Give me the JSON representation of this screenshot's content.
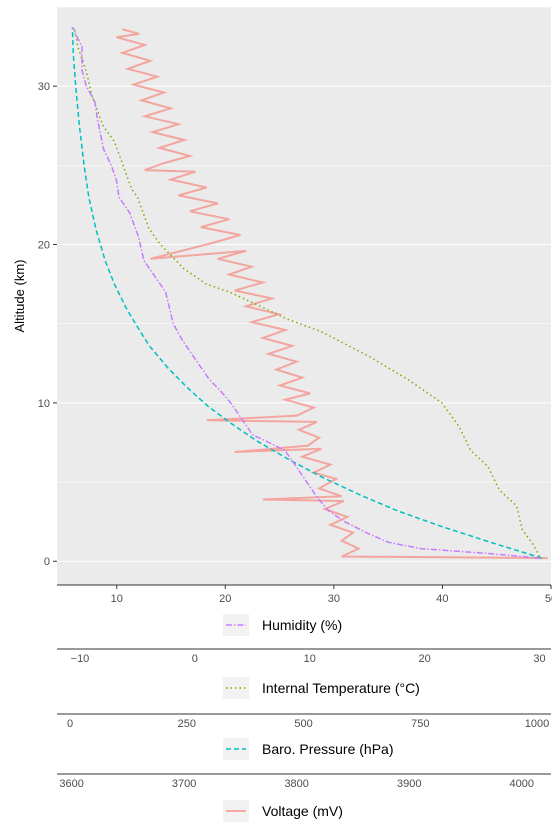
{
  "chart_data": {
    "type": "line",
    "title": "",
    "ylabel": "Altitude (km)",
    "ylim": [
      -1.5,
      35
    ],
    "y_ticks": [
      0,
      10,
      20,
      30
    ],
    "grid": true,
    "legend_position": "bottom",
    "axes": [
      {
        "key": "humidity",
        "label": "Humidity (%)",
        "unit": "%",
        "range": [
          4.5,
          50
        ],
        "ticks": [
          10,
          20,
          30,
          40,
          50
        ]
      },
      {
        "key": "temperature",
        "label": "Internal Temperature (°C)",
        "unit": "°C",
        "range": [
          -12,
          31
        ],
        "ticks": [
          -10,
          0,
          10,
          20,
          30
        ],
        "tick_labels": [
          "−10",
          "0",
          "10",
          "20",
          "30"
        ]
      },
      {
        "key": "pressure",
        "label": "Baro. Pressure (hPa)",
        "unit": "hPa",
        "range": [
          -28,
          1030
        ],
        "ticks": [
          0,
          250,
          500,
          750,
          1000
        ]
      },
      {
        "key": "voltage",
        "label": "Voltage (mV)",
        "unit": "mV",
        "range": [
          3587,
          4026
        ],
        "ticks": [
          3600,
          3700,
          3800,
          3900,
          4000
        ]
      }
    ],
    "series": [
      {
        "name": "Humidity (%)",
        "axis": "humidity",
        "color": "#c77cff",
        "dash": "6,2,1.5,2",
        "points": [
          [
            49,
            0.2
          ],
          [
            44,
            0.5
          ],
          [
            38,
            0.8
          ],
          [
            35,
            1.2
          ],
          [
            33,
            1.8
          ],
          [
            31,
            2.5
          ],
          [
            29.5,
            3.2
          ],
          [
            28.5,
            4
          ],
          [
            27.5,
            5
          ],
          [
            26.5,
            6
          ],
          [
            25.5,
            7
          ],
          [
            24,
            7.5
          ],
          [
            22.5,
            8
          ],
          [
            21.5,
            9
          ],
          [
            20.5,
            10
          ],
          [
            19.5,
            10.8
          ],
          [
            18.5,
            11.5
          ],
          [
            17.5,
            12.5
          ],
          [
            16,
            14
          ],
          [
            15.2,
            15
          ],
          [
            14.5,
            17
          ],
          [
            13.5,
            18
          ],
          [
            12.5,
            19
          ],
          [
            12,
            20.5
          ],
          [
            11.2,
            22
          ],
          [
            10.2,
            23
          ],
          [
            10,
            24
          ],
          [
            9.5,
            25
          ],
          [
            8.8,
            26
          ],
          [
            8.5,
            27
          ],
          [
            8.2,
            28
          ],
          [
            8,
            29
          ],
          [
            7.2,
            30
          ],
          [
            6.8,
            31
          ],
          [
            6.8,
            32.5
          ],
          [
            6.2,
            33.3
          ],
          [
            6,
            33.7
          ]
        ]
      },
      {
        "name": "Internal Temperature (°C)",
        "axis": "temperature",
        "color": "#7cae00",
        "dash": "1.5,3",
        "points": [
          [
            30,
            0.3
          ],
          [
            29.5,
            1
          ],
          [
            28.5,
            2
          ],
          [
            28,
            3.5
          ],
          [
            26.5,
            4.5
          ],
          [
            25.5,
            6
          ],
          [
            24,
            7
          ],
          [
            23,
            8.5
          ],
          [
            21.5,
            10
          ],
          [
            18.5,
            11.5
          ],
          [
            15,
            13
          ],
          [
            11,
            14.5
          ],
          [
            8,
            15.3
          ],
          [
            6,
            16
          ],
          [
            3,
            17
          ],
          [
            1,
            17.5
          ],
          [
            -1,
            18.5
          ],
          [
            -3,
            20
          ],
          [
            -4,
            21
          ],
          [
            -4.5,
            22
          ],
          [
            -5,
            23
          ],
          [
            -5.5,
            23.5
          ],
          [
            -6,
            24.5
          ],
          [
            -6.5,
            25.5
          ],
          [
            -7,
            26.5
          ],
          [
            -8,
            27.5
          ],
          [
            -8.5,
            28.5
          ],
          [
            -9,
            29.5
          ],
          [
            -9.3,
            30.5
          ],
          [
            -9.7,
            31.5
          ],
          [
            -10.2,
            32.5
          ],
          [
            -10.3,
            33
          ],
          [
            -10.5,
            33.7
          ]
        ]
      },
      {
        "name": "Baro. Pressure (hPa)",
        "axis": "pressure",
        "color": "#00bfc4",
        "dash": "5,3",
        "points": [
          [
            1010,
            0.2
          ],
          [
            900,
            1.2
          ],
          [
            795,
            2.2
          ],
          [
            700,
            3.2
          ],
          [
            620,
            4.2
          ],
          [
            540,
            5.3
          ],
          [
            470,
            6.4
          ],
          [
            400,
            7.6
          ],
          [
            345,
            8.7
          ],
          [
            295,
            9.8
          ],
          [
            250,
            11
          ],
          [
            210,
            12.2
          ],
          [
            170,
            13.6
          ],
          [
            140,
            15
          ],
          [
            120,
            16
          ],
          [
            95,
            17.5
          ],
          [
            75,
            19
          ],
          [
            55,
            21
          ],
          [
            40,
            23
          ],
          [
            30,
            25
          ],
          [
            20,
            27.5
          ],
          [
            12,
            30
          ],
          [
            7,
            32
          ],
          [
            5,
            33.7
          ]
        ]
      },
      {
        "name": "Voltage (mV)",
        "axis": "voltage",
        "color": "#f8766d",
        "dash": "",
        "opacity": 0.6,
        "points": [
          [
            4023,
            0.2
          ],
          [
            3840,
            0.3
          ],
          [
            3855,
            0.8
          ],
          [
            3840,
            1.3
          ],
          [
            3850,
            1.8
          ],
          [
            3830,
            2.3
          ],
          [
            3845,
            2.8
          ],
          [
            3825,
            3.3
          ],
          [
            3842,
            3.8
          ],
          [
            3770,
            3.9
          ],
          [
            3840,
            4.1
          ],
          [
            3820,
            4.6
          ],
          [
            3835,
            5.2
          ],
          [
            3815,
            5.6
          ],
          [
            3830,
            6.1
          ],
          [
            3805,
            6.6
          ],
          [
            3822,
            7.1
          ],
          [
            3745,
            6.9
          ],
          [
            3810,
            7.3
          ],
          [
            3820,
            7.8
          ],
          [
            3802,
            8.3
          ],
          [
            3818,
            8.8
          ],
          [
            3720,
            8.9
          ],
          [
            3800,
            9.2
          ],
          [
            3815,
            9.7
          ],
          [
            3790,
            10.2
          ],
          [
            3812,
            10.6
          ],
          [
            3785,
            11.1
          ],
          [
            3805,
            11.6
          ],
          [
            3782,
            12.1
          ],
          [
            3800,
            12.6
          ],
          [
            3775,
            13.1
          ],
          [
            3796,
            13.6
          ],
          [
            3770,
            14.1
          ],
          [
            3790,
            14.6
          ],
          [
            3760,
            15.1
          ],
          [
            3784,
            15.6
          ],
          [
            3755,
            16.1
          ],
          [
            3778,
            16.6
          ],
          [
            3745,
            17.1
          ],
          [
            3770,
            17.6
          ],
          [
            3740,
            18.1
          ],
          [
            3760,
            18.6
          ],
          [
            3730,
            19.1
          ],
          [
            3755,
            19.6
          ],
          [
            3670,
            19.1
          ],
          [
            3725,
            20.1
          ],
          [
            3750,
            20.6
          ],
          [
            3715,
            21.1
          ],
          [
            3740,
            21.6
          ],
          [
            3705,
            22.1
          ],
          [
            3730,
            22.6
          ],
          [
            3695,
            23.1
          ],
          [
            3720,
            23.6
          ],
          [
            3688,
            24.1
          ],
          [
            3710,
            24.6
          ],
          [
            3665,
            24.7
          ],
          [
            3680,
            25.1
          ],
          [
            3705,
            25.6
          ],
          [
            3678,
            26.1
          ],
          [
            3700,
            26.6
          ],
          [
            3672,
            27.1
          ],
          [
            3695,
            27.6
          ],
          [
            3665,
            28.1
          ],
          [
            3688,
            28.6
          ],
          [
            3662,
            29.1
          ],
          [
            3682,
            29.6
          ],
          [
            3655,
            30.1
          ],
          [
            3676,
            30.6
          ],
          [
            3650,
            31.1
          ],
          [
            3670,
            31.6
          ],
          [
            3645,
            32.1
          ],
          [
            3665,
            32.6
          ],
          [
            3640,
            33.1
          ],
          [
            3660,
            33.3
          ],
          [
            3645,
            33.6
          ]
        ]
      }
    ]
  }
}
